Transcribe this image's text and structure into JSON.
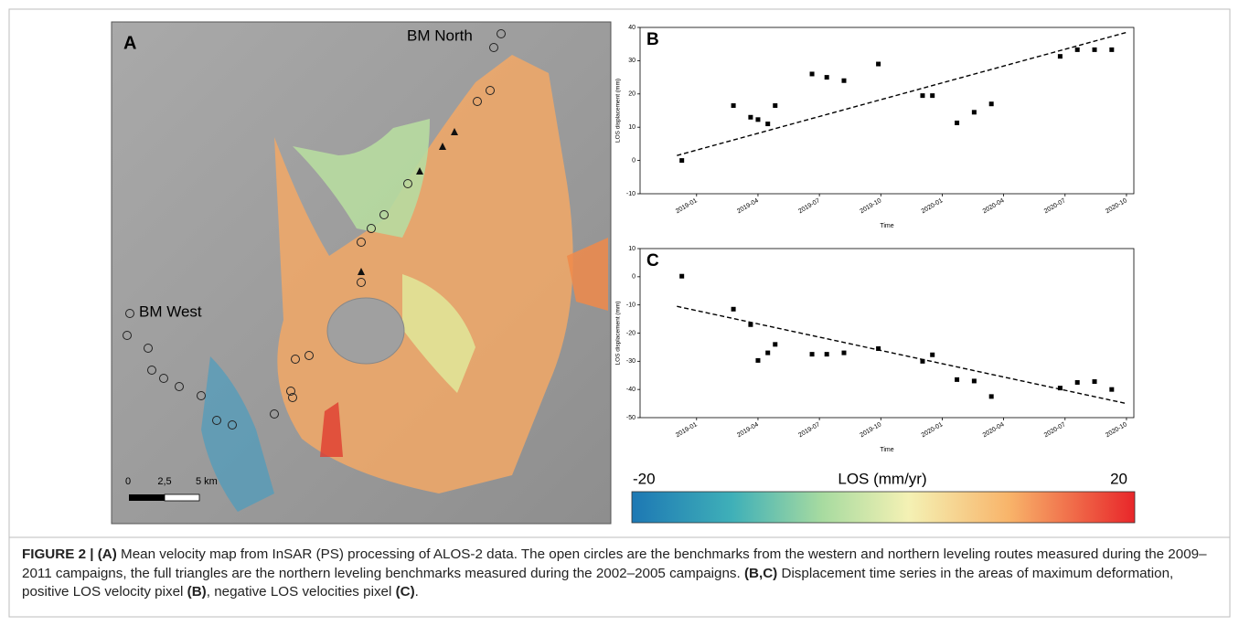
{
  "panel_a": {
    "letter": "A",
    "labels": [
      "BM North",
      "BM West"
    ],
    "scale_labels": [
      "0",
      "2,5",
      "5 km"
    ]
  },
  "chart_data": [
    {
      "type": "scatter",
      "letter": "B",
      "x_label": "Time",
      "y_label": "LOS displacement (mm)",
      "x": [
        2018.94,
        2019.15,
        2019.22,
        2019.25,
        2019.29,
        2019.32,
        2019.47,
        2019.53,
        2019.6,
        2019.74,
        2019.92,
        2019.96,
        2020.06,
        2020.13,
        2020.2,
        2020.48,
        2020.55,
        2020.62,
        2020.69
      ],
      "series": [
        {
          "color": "#000000",
          "marker": "square",
          "values": [
            0,
            16.5,
            13,
            12.3,
            11,
            16.5,
            26,
            25,
            24,
            29,
            19.5,
            19.5,
            11.3,
            14.5,
            17,
            31.3,
            33.3,
            33.3,
            33.3
          ]
        },
        {
          "color": "#000000",
          "linestyle": "dashed",
          "x": [
            2018.92,
            2020.75
          ],
          "values": [
            1.5,
            38.5
          ]
        }
      ],
      "xlim": [
        2018.77,
        2020.78
      ],
      "ylim": [
        -10,
        40
      ],
      "yticks": [
        -10,
        0,
        10,
        20,
        30,
        40
      ],
      "xticks": [
        {
          "value": 2019.0,
          "label": "2019-01"
        },
        {
          "value": 2019.25,
          "label": "2019-04"
        },
        {
          "value": 2019.5,
          "label": "2019-07"
        },
        {
          "value": 2019.75,
          "label": "2019-10"
        },
        {
          "value": 2020.0,
          "label": "2020-01"
        },
        {
          "value": 2020.25,
          "label": "2020-04"
        },
        {
          "value": 2020.5,
          "label": "2020-07"
        },
        {
          "value": 2020.75,
          "label": "2020-10"
        }
      ]
    },
    {
      "type": "scatter",
      "letter": "C",
      "x_label": "Time",
      "y_label": "LOS displacement (mm)",
      "x": [
        2018.94,
        2019.15,
        2019.22,
        2019.25,
        2019.29,
        2019.32,
        2019.47,
        2019.53,
        2019.6,
        2019.74,
        2019.92,
        2019.96,
        2020.06,
        2020.13,
        2020.2,
        2020.48,
        2020.55,
        2020.62,
        2020.69
      ],
      "series": [
        {
          "color": "#000000",
          "marker": "square",
          "values": [
            0.2,
            -11.5,
            -17,
            -29.7,
            -27,
            -24,
            -27.5,
            -27.5,
            -27,
            -25.5,
            -30,
            -27.7,
            -36.5,
            -37,
            -42.5,
            -39.5,
            -37.5,
            -37.2,
            -40
          ]
        },
        {
          "color": "#000000",
          "linestyle": "dashed",
          "x": [
            2018.92,
            2020.75
          ],
          "values": [
            -10.5,
            -45
          ]
        }
      ],
      "xlim": [
        2018.77,
        2020.78
      ],
      "ylim": [
        -50,
        10
      ],
      "yticks": [
        -50,
        -40,
        -30,
        -20,
        -10,
        0,
        10
      ],
      "xticks": [
        {
          "value": 2019.0,
          "label": "2019-01"
        },
        {
          "value": 2019.25,
          "label": "2019-04"
        },
        {
          "value": 2019.5,
          "label": "2019-07"
        },
        {
          "value": 2019.75,
          "label": "2019-10"
        },
        {
          "value": 2020.0,
          "label": "2020-01"
        },
        {
          "value": 2020.25,
          "label": "2020-04"
        },
        {
          "value": 2020.5,
          "label": "2020-07"
        },
        {
          "value": 2020.75,
          "label": "2020-10"
        }
      ]
    }
  ],
  "colorbar": {
    "min": -20,
    "max": 20,
    "label": "LOS (mm/yr)"
  },
  "caption": [
    {
      "text": "FIGURE 2 | (A)",
      "bold": true
    },
    {
      "text": " Mean velocity map from InSAR (PS) processing of ALOS-2 data. The open circles are the benchmarks from the western and northern leveling routes measured during the 2009–2011 campaigns, the full triangles are the northern leveling benchmarks measured during the 2002–2005 campaigns. ",
      "bold": false
    },
    {
      "text": "(B,C)",
      "bold": true
    },
    {
      "text": " Displacement time series in the areas of maximum deformation, positive LOS velocity pixel ",
      "bold": false
    },
    {
      "text": "(B)",
      "bold": true
    },
    {
      "text": ", negative LOS velocities pixel ",
      "bold": false
    },
    {
      "text": "(C)",
      "bold": true
    },
    {
      "text": ".",
      "bold": false
    }
  ]
}
